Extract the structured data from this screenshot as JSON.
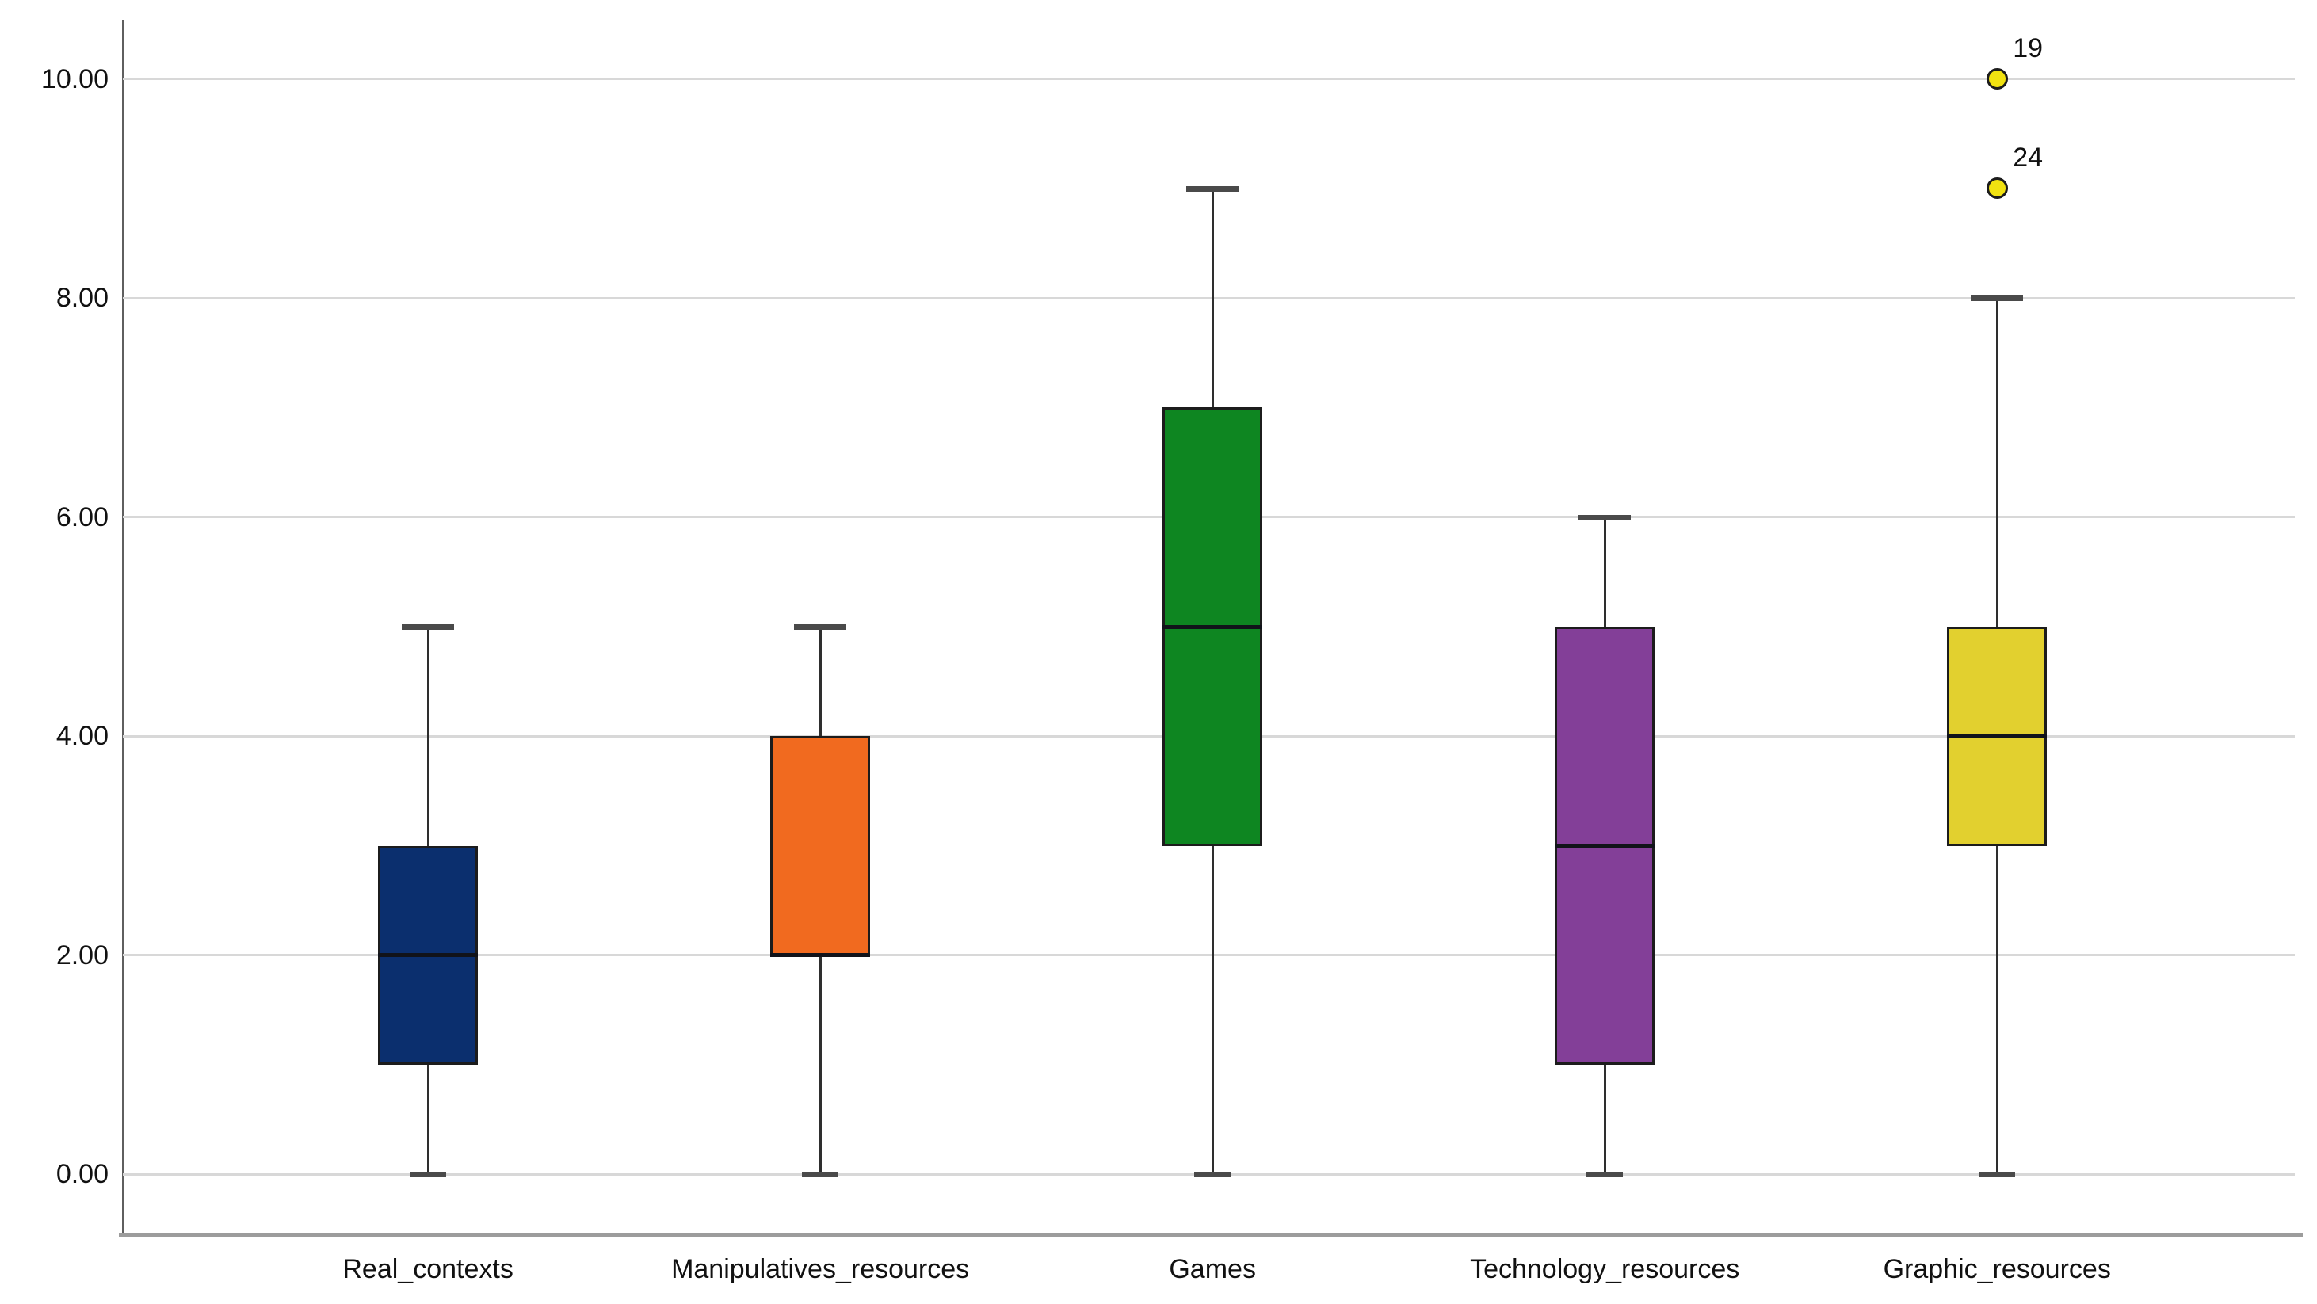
{
  "chart_data": {
    "type": "boxplot",
    "title": "",
    "xlabel": "",
    "ylabel": "",
    "ylim": [
      -0.54,
      10.54
    ],
    "yticks": [
      0,
      2,
      4,
      6,
      8,
      10
    ],
    "ytick_labels": [
      "0.00",
      "2.00",
      "4.00",
      "6.00",
      "8.00",
      "10.00"
    ],
    "grid": "horizontal",
    "legend": "none",
    "categories": [
      "Real_contexts",
      "Manipulatives_resources",
      "Games",
      "Technology_resources",
      "Graphic_resources"
    ],
    "series": [
      {
        "name": "Real_contexts",
        "box_color": "#0b2f6e",
        "whisker_low": 0,
        "q1": 1,
        "median": 2,
        "q3": 3,
        "whisker_high": 5,
        "outliers": []
      },
      {
        "name": "Manipulatives_resources",
        "box_color": "#f16a1f",
        "whisker_low": 0,
        "q1": 2,
        "median": 2,
        "q3": 4,
        "whisker_high": 5,
        "outliers": []
      },
      {
        "name": "Games",
        "box_color": "#0e8621",
        "whisker_low": 0,
        "q1": 3,
        "median": 5,
        "q3": 7,
        "whisker_high": 9,
        "outliers": []
      },
      {
        "name": "Technology_resources",
        "box_color": "#833f98",
        "whisker_low": 0,
        "q1": 1,
        "median": 3,
        "q3": 5,
        "whisker_high": 6,
        "outliers": []
      },
      {
        "name": "Graphic_resources",
        "box_color": "#e2d02f",
        "whisker_low": 0,
        "q1": 3,
        "median": 4,
        "q3": 5,
        "whisker_high": 8,
        "outliers": [
          {
            "value": 9,
            "label": "24"
          },
          {
            "value": 10,
            "label": "19"
          }
        ]
      }
    ],
    "colors": {
      "background": "#ffffff",
      "gridline": "#d8d8d8",
      "axis_y": "#5f5f5f",
      "axis_x": "#9c9c9c",
      "box_border": "#1c1c1c",
      "median": "#11131a",
      "whisker": "#2e2e2e",
      "cap": "#4a4a4a",
      "outlier_fill": "#f1e211",
      "outlier_border": "#1c1c1c",
      "text": "#111111"
    }
  }
}
